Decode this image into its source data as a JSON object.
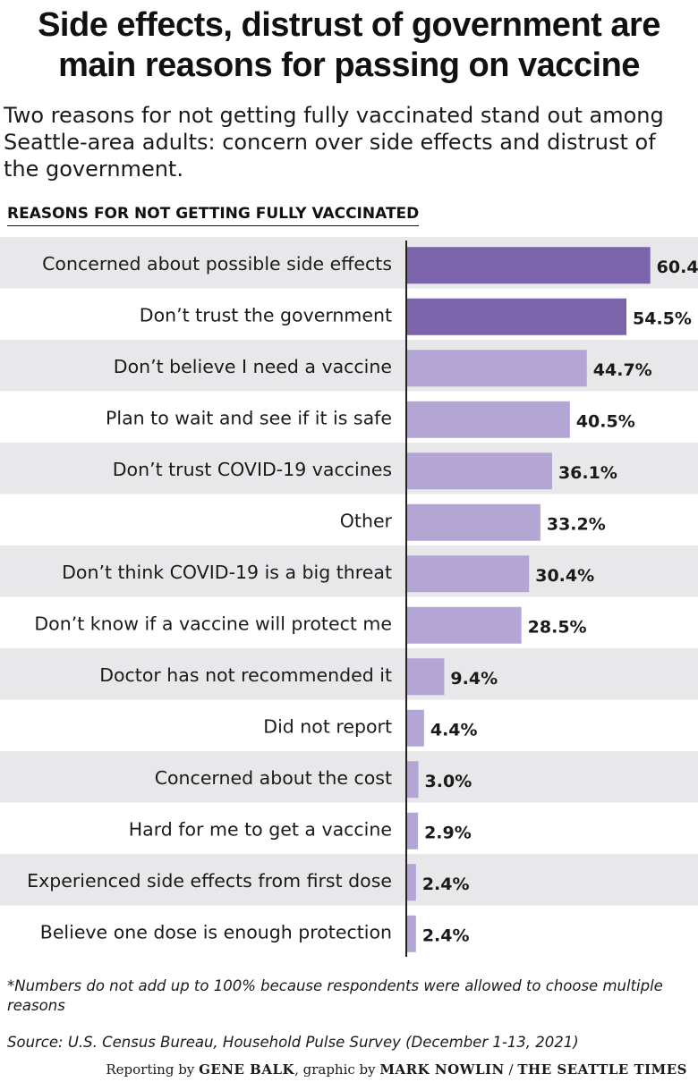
{
  "header": {
    "title_line1": "Side effects, distrust of government are",
    "title_line2": "main reasons for passing on vaccine",
    "subtitle": "Two reasons for not getting fully vaccinated stand out among Seattle-area adults: concern over side effects and distrust of the government."
  },
  "section_label": "REASONS FOR NOT GETTING FULLY VACCINATED",
  "colors": {
    "highlight_bar": "#7c64ab",
    "standard_bar": "#b4a6d4",
    "stripe": "#e8e8ea",
    "axis": "#222222"
  },
  "chart_data": {
    "type": "bar",
    "orientation": "horizontal",
    "title": "REASONS FOR NOT GETTING FULLY VACCINATED",
    "categories": [
      "Concerned about possible side effects",
      "Don’t trust the government",
      "Don’t believe I need a vaccine",
      "Plan to wait and see if it is safe",
      "Don’t trust COVID-19 vaccines",
      "Other",
      "Don’t think COVID-19 is a big threat",
      "Don’t know if a vaccine will protect me",
      "Doctor has not recommended it",
      "Did not report",
      "Concerned about the cost",
      "Hard for me to get a vaccine",
      "Experienced side effects from first dose",
      "Believe one dose is enough protection"
    ],
    "values": [
      60.4,
      54.5,
      44.7,
      40.5,
      36.1,
      33.2,
      30.4,
      28.5,
      9.4,
      4.4,
      3.0,
      2.9,
      2.4,
      2.4
    ],
    "value_labels": [
      "60.4%",
      "54.5%",
      "44.7%",
      "40.5%",
      "36.1%",
      "33.2%",
      "30.4%",
      "28.5%",
      "9.4%",
      "4.4%",
      "3.0%",
      "2.9%",
      "2.4%",
      "2.4%"
    ],
    "highlighted": [
      true,
      true,
      false,
      false,
      false,
      false,
      false,
      false,
      false,
      false,
      false,
      false,
      false,
      false
    ],
    "xlim": [
      0,
      70
    ],
    "unit": "%",
    "grid": false,
    "alternating_row_shading": true
  },
  "footnote": "*Numbers do not add up to 100% because respondents were allowed to choose multiple reasons",
  "source": "Source: U.S. Census Bureau, Household Pulse Survey (December 1-13, 2021)",
  "credit": {
    "prefix": "Reporting by ",
    "reporter": "GENE BALK",
    "middle": ", graphic by ",
    "designer": "MARK NOWLIN",
    "separator": " / ",
    "outlet": "THE SEATTLE TIMES"
  }
}
